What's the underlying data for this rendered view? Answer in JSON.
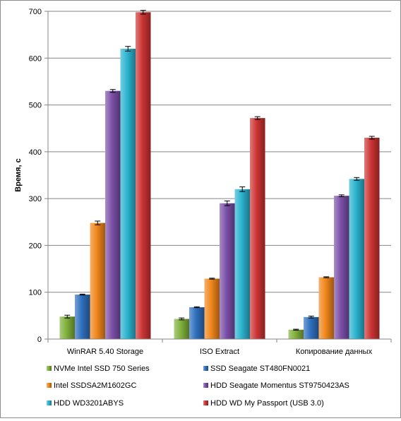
{
  "chart_data": {
    "type": "bar",
    "ylabel": "Время, с",
    "ylim": [
      0,
      700
    ],
    "yticks": [
      0,
      100,
      200,
      300,
      400,
      500,
      600,
      700
    ],
    "grid": true,
    "legend_position": "bottom",
    "error_bars": true,
    "categories": [
      "WinRAR 5.40 Storage",
      "ISO Extract",
      "Копирование данных"
    ],
    "series": [
      {
        "name": "NVMe Intel SSD 750 Series",
        "color": "#7fb03a",
        "values": [
          48,
          43,
          20
        ],
        "errors": [
          3,
          2,
          1
        ]
      },
      {
        "name": "SSD Seagate ST480FN0021",
        "color": "#2e6fbd",
        "values": [
          95,
          68,
          47
        ],
        "errors": [
          1,
          1,
          2
        ]
      },
      {
        "name": "Intel SSDSA2M1602GC",
        "color": "#f0861a",
        "values": [
          248,
          129,
          132
        ],
        "errors": [
          4,
          1,
          1
        ]
      },
      {
        "name": "HDD Seagate Momentus ST9750423AS",
        "color": "#7b4fa8",
        "values": [
          530,
          290,
          306
        ],
        "errors": [
          3,
          5,
          2
        ]
      },
      {
        "name": "HDD WD3201ABYS",
        "color": "#2bb3cf",
        "values": [
          620,
          320,
          342
        ],
        "errors": [
          5,
          5,
          3
        ]
      },
      {
        "name": "HDD WD My Passport (USB 3.0)",
        "color": "#cc3333",
        "values": [
          698,
          472,
          430
        ],
        "errors": [
          4,
          3,
          3
        ]
      }
    ]
  }
}
